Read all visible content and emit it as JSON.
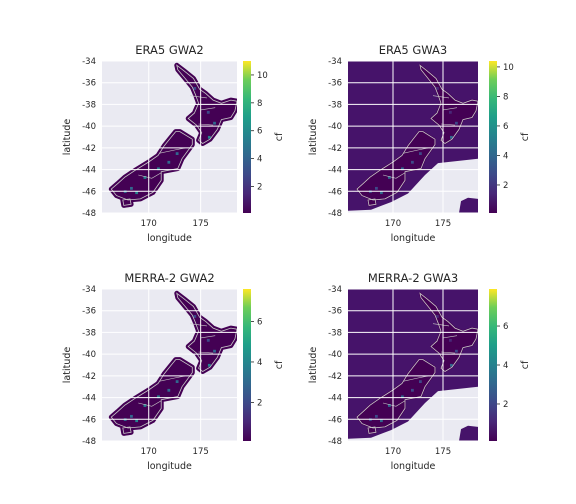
{
  "chart_data": [
    {
      "type": "heatmap",
      "title": "ERA5 GWA2",
      "xlabel": "longitude",
      "ylabel": "latitude",
      "xticks": [
        "170",
        "175"
      ],
      "yticks": [
        "-34",
        "-36",
        "-38",
        "-40",
        "-42",
        "-44",
        "-46",
        "-48"
      ],
      "xlim": [
        165.5,
        178.5
      ],
      "ylim": [
        -48,
        -34
      ],
      "grid": true,
      "colormap": "viridis",
      "colorbar_label": "cf",
      "colorbar_range": [
        0.1,
        11.0
      ],
      "colorbar_ticks": [
        "2",
        "4",
        "6",
        "8",
        "10"
      ],
      "coverage": "land-only"
    },
    {
      "type": "heatmap",
      "title": "ERA5 GWA3",
      "xlabel": "longitude",
      "ylabel": "latitude",
      "xticks": [
        "170",
        "175"
      ],
      "yticks": [
        "-34",
        "-36",
        "-38",
        "-40",
        "-42",
        "-44",
        "-46",
        "-48"
      ],
      "xlim": [
        165.5,
        178.5
      ],
      "ylim": [
        -48,
        -34
      ],
      "grid": true,
      "colormap": "viridis",
      "colorbar_label": "cf",
      "colorbar_range": [
        0.1,
        10.4
      ],
      "colorbar_ticks": [
        "2",
        "4",
        "6",
        "8",
        "10"
      ],
      "coverage": "land-and-offshore"
    },
    {
      "type": "heatmap",
      "title": "MERRA-2 GWA2",
      "xlabel": "longitude",
      "ylabel": "latitude",
      "xticks": [
        "170",
        "175"
      ],
      "yticks": [
        "-34",
        "-36",
        "-38",
        "-40",
        "-42",
        "-44",
        "-46",
        "-48"
      ],
      "xlim": [
        165.5,
        178.5
      ],
      "ylim": [
        -48,
        -34
      ],
      "grid": true,
      "colormap": "viridis",
      "colorbar_label": "cf",
      "colorbar_range": [
        0.1,
        7.6
      ],
      "colorbar_ticks": [
        "2",
        "4",
        "6"
      ],
      "coverage": "land-only"
    },
    {
      "type": "heatmap",
      "title": "MERRA-2 GWA3",
      "xlabel": "longitude",
      "ylabel": "latitude",
      "xticks": [
        "170",
        "175"
      ],
      "yticks": [
        "-34",
        "-36",
        "-38",
        "-40",
        "-42",
        "-44",
        "-46",
        "-48"
      ],
      "xlim": [
        165.5,
        178.5
      ],
      "ylim": [
        -48,
        -34
      ],
      "grid": true,
      "colormap": "viridis",
      "colorbar_label": "cf",
      "colorbar_range": [
        0.1,
        7.9
      ],
      "colorbar_ticks": [
        "2",
        "4",
        "6"
      ],
      "coverage": "land-and-offshore"
    }
  ],
  "colors": {
    "plot_background": "#eaeaf2",
    "grid": "#ffffff",
    "low": "#440154",
    "mid": "#31688e",
    "high": "#fde725",
    "coastline": "#c8c8c8"
  }
}
